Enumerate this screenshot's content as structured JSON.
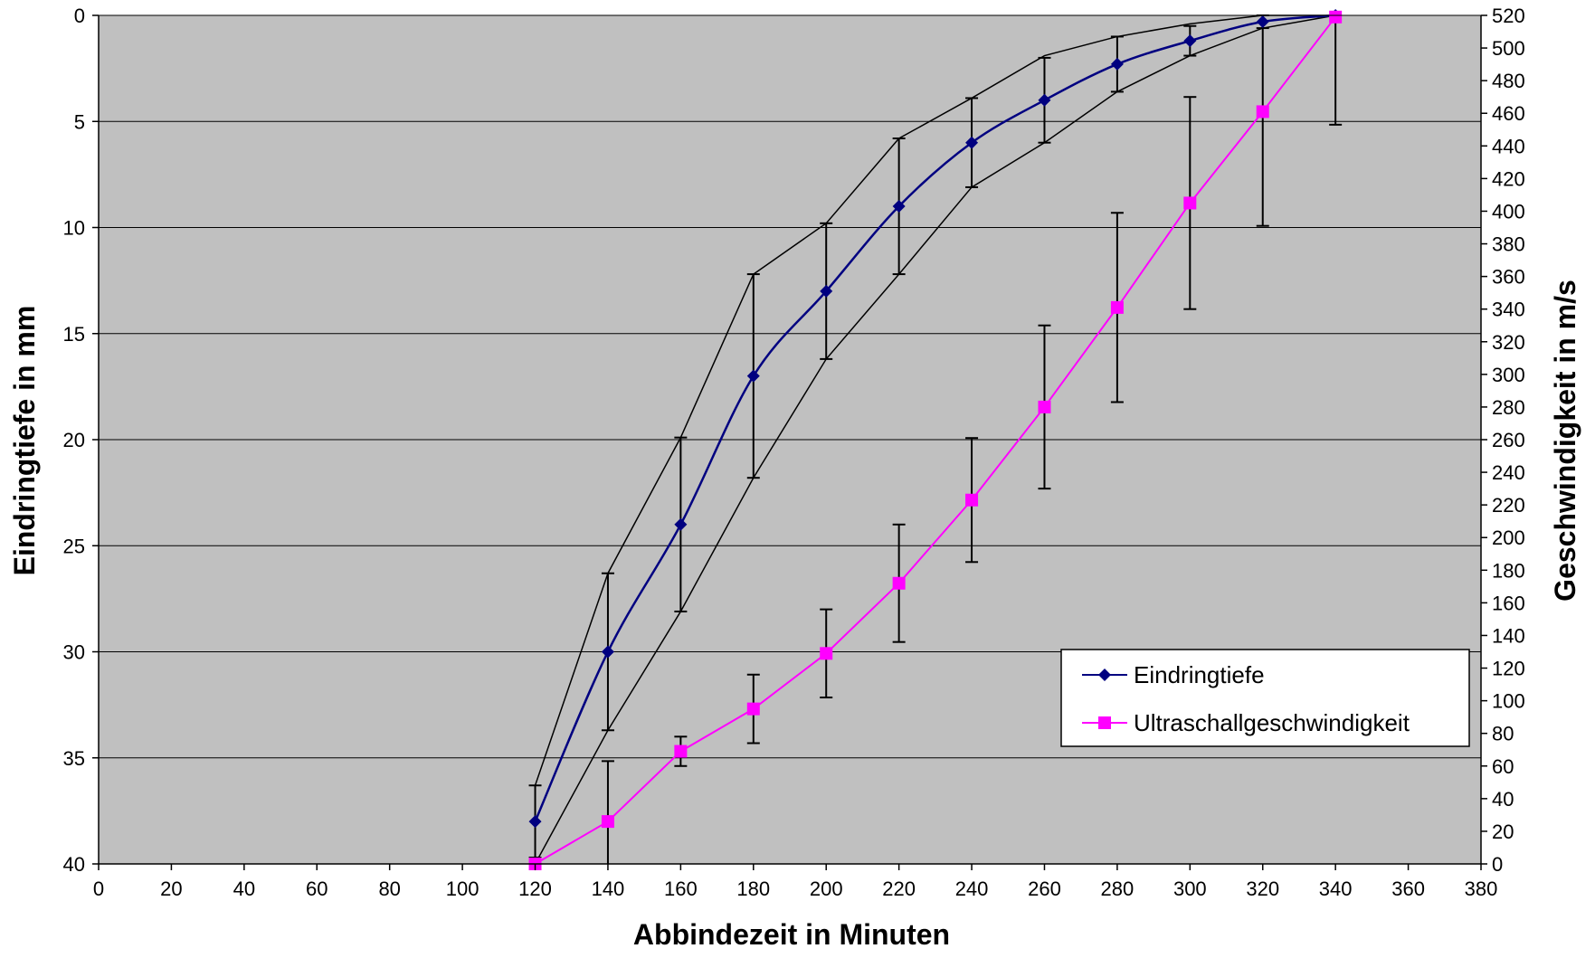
{
  "chart_data": {
    "type": "line",
    "title": "",
    "xlabel": "Abbindezeit in Minuten",
    "ylabel_left": "Eindringtiefe in mm",
    "ylabel_right": "Geschwindigkeit in m/s",
    "xlim": [
      0,
      380
    ],
    "x_ticks": [
      0,
      20,
      40,
      60,
      80,
      100,
      120,
      140,
      160,
      180,
      200,
      220,
      240,
      260,
      280,
      300,
      320,
      340,
      360,
      380
    ],
    "ylim_left": [
      0,
      40
    ],
    "left_axis_inverted": true,
    "y_ticks_left": [
      0,
      5,
      10,
      15,
      20,
      25,
      30,
      35,
      40
    ],
    "ylim_right": [
      0,
      520
    ],
    "y_ticks_right": [
      0,
      20,
      40,
      60,
      80,
      100,
      120,
      140,
      160,
      180,
      200,
      220,
      240,
      260,
      280,
      300,
      320,
      340,
      360,
      380,
      400,
      420,
      440,
      460,
      480,
      500,
      520
    ],
    "grid": "horizontal",
    "plot_background": "#c0c0c0",
    "legend_position": "bottom-right",
    "series": [
      {
        "name": "Eindringtiefe",
        "axis": "left",
        "color": "#000080",
        "marker": "diamond",
        "x": [
          120,
          140,
          160,
          180,
          200,
          220,
          240,
          260,
          280,
          300,
          320,
          340
        ],
        "y": [
          38,
          30,
          24,
          17,
          13,
          9,
          6,
          4,
          2.3,
          1.2,
          0.3,
          0
        ],
        "error": [
          1.7,
          3.7,
          4.1,
          4.8,
          3.2,
          3.2,
          2.1,
          2.0,
          1.3,
          0.7,
          0.3,
          0
        ],
        "envelope_upper": [
          36.3,
          26.3,
          19.9,
          12.2,
          9.8,
          5.8,
          3.9,
          1.9,
          1.0,
          0.4,
          0,
          0
        ],
        "envelope_lower": [
          40,
          33.7,
          28.1,
          21.8,
          16.2,
          12.2,
          8.1,
          6.0,
          3.6,
          1.9,
          0.6,
          0
        ]
      },
      {
        "name": "Ultraschallgeschwindigkeit",
        "axis": "right",
        "color": "#ff00ff",
        "marker": "square",
        "x": [
          120,
          140,
          160,
          180,
          200,
          220,
          240,
          260,
          280,
          300,
          320,
          340
        ],
        "y": [
          0,
          26,
          69,
          95,
          129,
          172,
          223,
          280,
          341,
          405,
          461,
          519
        ],
        "error": [
          0,
          37,
          9,
          21,
          27,
          36,
          38,
          50,
          58,
          65,
          70,
          66
        ]
      }
    ]
  }
}
